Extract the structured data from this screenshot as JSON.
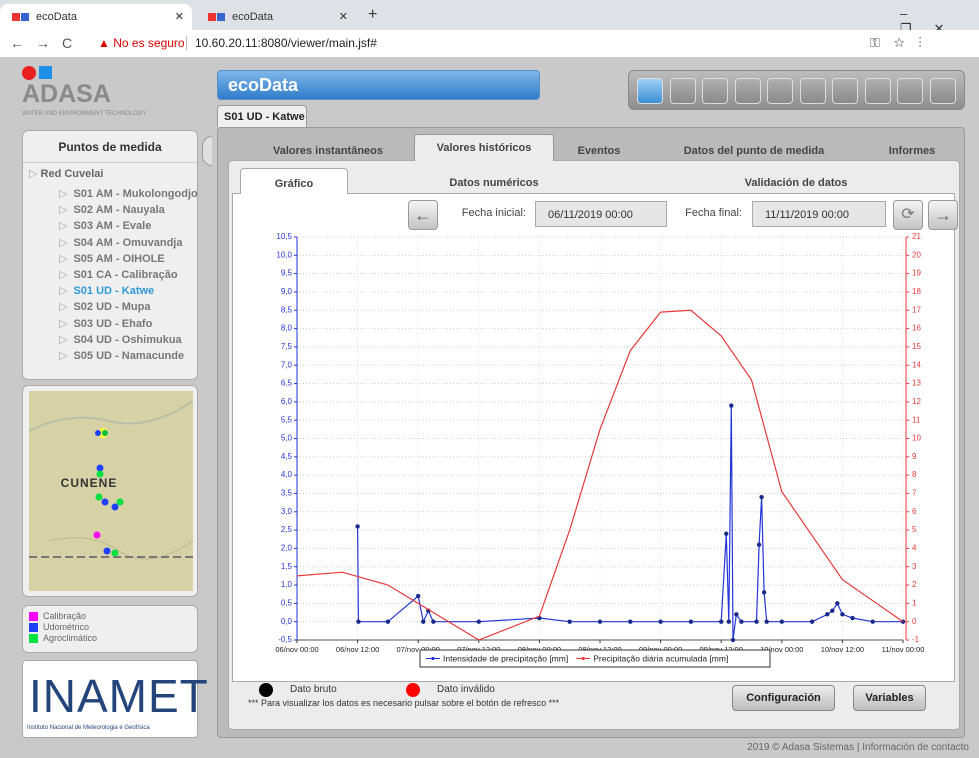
{
  "browser": {
    "tabs": [
      "ecoData",
      "ecoData"
    ],
    "security": "No es seguro",
    "url": "10.60.20.11:8080/viewer/main.jsf#"
  },
  "app": {
    "brand": "ADASA",
    "brand_sub": "WATER AND ENVIRONMENT TECHNOLOGY",
    "title": "ecoData",
    "station": "S01 UD - Katwe"
  },
  "sidebar": {
    "title": "Puntos de medida",
    "network": "Red Cuvelai",
    "stations": [
      "S01 AM - Mukolongodjo",
      "S02 AM - Nauyala",
      "S03 AM - Evale",
      "S04 AM - Omuvandja",
      "S05 AM - OIHOLE",
      "S01 CA - Calibração",
      "S01 UD - Katwe",
      "S02 UD - Mupa",
      "S03 UD - Ehafo",
      "S04 UD - Oshimukua",
      "S05 UD - Namacunde"
    ],
    "selected": 6
  },
  "map": {
    "label": "CUNENE"
  },
  "map_legend": [
    {
      "label": "Calibração",
      "color": "#ff00ff"
    },
    {
      "label": "Udométrico",
      "color": "#2040ff"
    },
    {
      "label": "Agroclimático",
      "color": "#00e040"
    }
  ],
  "institution": {
    "name": "INAMET",
    "subtitle": "Instituto Nacional de Meteorologia e Geofísica"
  },
  "tabs": [
    "Valores instantâneos",
    "Valores históricos",
    "Eventos",
    "Datos del punto de medida",
    "Informes"
  ],
  "active_tab": 1,
  "subtabs": [
    "Gráfico",
    "Datos numéricos",
    "Validación de datos"
  ],
  "active_subtab": 0,
  "filters": {
    "start_label": "Fecha inicial:",
    "start": "06/11/2019 00:00",
    "end_label": "Fecha final:",
    "end": "11/11/2019 00:00"
  },
  "chart_data": {
    "type": "line",
    "xlim": [
      "06/nov 00:00",
      "11/nov 00:00"
    ],
    "xticks": [
      "06/nov 00:00",
      "06/nov 12:00",
      "07/nov 00:00",
      "07/nov 12:00",
      "08/nov 00:00",
      "08/nov 12:00",
      "09/nov 00:00",
      "09/nov 12:00",
      "10/nov 00:00",
      "10/nov 12:00",
      "11/nov 00:00"
    ],
    "ylim": [
      -0.5,
      10.5
    ],
    "yticks": [
      {
        "value": -0.5,
        "label": "-0,5"
      },
      {
        "value": 0,
        "label": "0,0"
      },
      {
        "value": 0.5,
        "label": "0,5"
      },
      {
        "value": 1,
        "label": "1,0"
      },
      {
        "value": 1.5,
        "label": "1,5"
      },
      {
        "value": 2,
        "label": "2,0"
      },
      {
        "value": 2.5,
        "label": "2,5"
      },
      {
        "value": 3,
        "label": "3,0"
      },
      {
        "value": 3.5,
        "label": "3,5"
      },
      {
        "value": 4,
        "label": "4,0"
      },
      {
        "value": 4.5,
        "label": "4,5"
      },
      {
        "value": 5,
        "label": "5,0"
      },
      {
        "value": 5.5,
        "label": "5,5"
      },
      {
        "value": 6,
        "label": "6,0"
      },
      {
        "value": 6.5,
        "label": "6,5"
      },
      {
        "value": 7,
        "label": "7,0"
      },
      {
        "value": 7.5,
        "label": "7,5"
      },
      {
        "value": 8,
        "label": "8,0"
      },
      {
        "value": 8.5,
        "label": "8,5"
      },
      {
        "value": 9,
        "label": "9,0"
      },
      {
        "value": 9.5,
        "label": "9,5"
      },
      {
        "value": 10,
        "label": "10,0"
      },
      {
        "value": 10.5,
        "label": "10,5"
      }
    ],
    "y2lim": [
      -1,
      21
    ],
    "y2ticks": [
      -1,
      0,
      1,
      2,
      3,
      4,
      5,
      6,
      7,
      8,
      9,
      10,
      11,
      12,
      13,
      14,
      15,
      16,
      17,
      18,
      19,
      20,
      21
    ],
    "grid": true,
    "series": [
      {
        "name": "Intensidade de precipitação [mm]",
        "color": "#2436d8",
        "x": [
          "06/nov 12:00",
          "06/nov 12:10",
          "06/nov 18:00",
          "07/nov 00:00",
          "07/nov 01:00",
          "07/nov 02:00",
          "07/nov 03:00",
          "07/nov 12:00",
          "08/nov 00:00",
          "08/nov 06:00",
          "08/nov 12:00",
          "08/nov 18:00",
          "09/nov 00:00",
          "09/nov 06:00",
          "09/nov 12:00",
          "09/nov 13:00",
          "09/nov 13:30",
          "09/nov 14:00",
          "09/nov 14:20",
          "09/nov 15:00",
          "09/nov 16:00",
          "09/nov 19:00",
          "09/nov 19:30",
          "09/nov 20:00",
          "09/nov 20:30",
          "09/nov 21:00",
          "10/nov 00:00",
          "10/nov 06:00",
          "10/nov 09:00",
          "10/nov 10:00",
          "10/nov 11:00",
          "10/nov 12:00",
          "10/nov 14:00",
          "10/nov 18:00",
          "11/nov 00:00"
        ],
        "values": [
          2.6,
          0,
          0,
          0.7,
          0,
          0.3,
          0,
          0,
          0.1,
          0,
          0,
          0,
          0,
          0,
          0,
          2.4,
          0,
          5.9,
          -0.5,
          0.2,
          0,
          0,
          2.1,
          3.4,
          0.8,
          0,
          0,
          0,
          0.2,
          0.3,
          0.5,
          0.2,
          0.1,
          0,
          0
        ]
      },
      {
        "name": "Precipitação diária acumulada [mm]",
        "color": "#e83a3a",
        "axis": "y2",
        "x": [
          "06/nov 00:00",
          "06/nov 09:00",
          "06/nov 18:00",
          "07/nov 00:00",
          "07/nov 12:00",
          "08/nov 00:00",
          "08/nov 06:00",
          "08/nov 12:00",
          "08/nov 18:00",
          "09/nov 00:00",
          "09/nov 06:00",
          "09/nov 12:00",
          "09/nov 18:00",
          "10/nov 00:00",
          "10/nov 12:00",
          "11/nov 00:00"
        ],
        "values": [
          2.5,
          2.7,
          2.0,
          1.0,
          -1.0,
          0.3,
          5.0,
          10.5,
          14.8,
          16.9,
          17.0,
          15.6,
          13.2,
          7.1,
          2.3,
          0
        ]
      }
    ]
  },
  "point_legend": [
    {
      "label": "Dato bruto",
      "color": "#000000"
    },
    {
      "label": "Dato inválido",
      "color": "#ff0000"
    }
  ],
  "note": "*** Para visualizar los datos es necesario pulsar sobre el botón de refresco ***",
  "buttons": [
    "Configuración",
    "Variables"
  ],
  "footer": "2019 © Adasa Sistemas | Información de contacto"
}
